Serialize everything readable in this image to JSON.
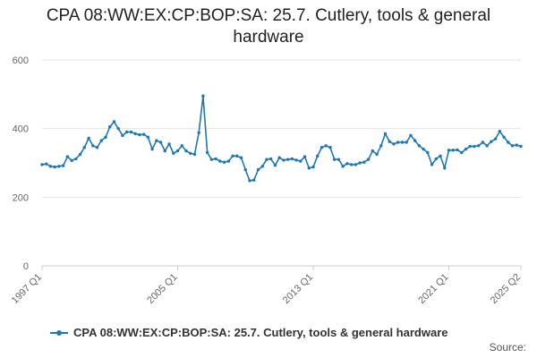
{
  "title_lines": [
    "CPA 08:WW:EX:CP:BOP:SA: 25.7. Cutlery, tools & general",
    "hardware"
  ],
  "source_label": "Source:",
  "colors": {
    "series": "#1f78b4",
    "grid": "#e6e6e6",
    "axis": "#cccccc",
    "tick_text": "#666666"
  },
  "chart_data": {
    "type": "line",
    "title": "CPA 08:WW:EX:CP:BOP:SA: 25.7. Cutlery, tools & general hardware",
    "xlabel": "",
    "ylabel": "",
    "ylim": [
      0,
      600
    ],
    "yticks": [
      0,
      200,
      400,
      600
    ],
    "xticks": [
      "1997 Q1",
      "2005 Q1",
      "2013 Q1",
      "2021 Q1",
      "2025 Q2"
    ],
    "grid": true,
    "legend_position": "bottom",
    "series": [
      {
        "name": "CPA 08:WW:EX:CP:BOP:SA: 25.7. Cutlery, tools & general hardware",
        "x": [
          "1997 Q1",
          "1997 Q2",
          "1997 Q3",
          "1997 Q4",
          "1998 Q1",
          "1998 Q2",
          "1998 Q3",
          "1998 Q4",
          "1999 Q1",
          "1999 Q2",
          "1999 Q3",
          "1999 Q4",
          "2000 Q1",
          "2000 Q2",
          "2000 Q3",
          "2000 Q4",
          "2001 Q1",
          "2001 Q2",
          "2001 Q3",
          "2001 Q4",
          "2002 Q1",
          "2002 Q2",
          "2002 Q3",
          "2002 Q4",
          "2003 Q1",
          "2003 Q2",
          "2003 Q3",
          "2003 Q4",
          "2004 Q1",
          "2004 Q2",
          "2004 Q3",
          "2004 Q4",
          "2005 Q1",
          "2005 Q2",
          "2005 Q3",
          "2005 Q4",
          "2006 Q1",
          "2006 Q2",
          "2006 Q3",
          "2006 Q4",
          "2007 Q1",
          "2007 Q2",
          "2007 Q3",
          "2007 Q4",
          "2008 Q1",
          "2008 Q2",
          "2008 Q3",
          "2008 Q4",
          "2009 Q1",
          "2009 Q2",
          "2009 Q3",
          "2009 Q4",
          "2010 Q1",
          "2010 Q2",
          "2010 Q3",
          "2010 Q4",
          "2011 Q1",
          "2011 Q2",
          "2011 Q3",
          "2011 Q4",
          "2012 Q1",
          "2012 Q2",
          "2012 Q3",
          "2012 Q4",
          "2013 Q1",
          "2013 Q2",
          "2013 Q3",
          "2013 Q4",
          "2014 Q1",
          "2014 Q2",
          "2014 Q3",
          "2014 Q4",
          "2015 Q1",
          "2015 Q2",
          "2015 Q3",
          "2015 Q4",
          "2016 Q1",
          "2016 Q2",
          "2016 Q3",
          "2016 Q4",
          "2017 Q1",
          "2017 Q2",
          "2017 Q3",
          "2017 Q4",
          "2018 Q1",
          "2018 Q2",
          "2018 Q3",
          "2018 Q4",
          "2019 Q1",
          "2019 Q2",
          "2019 Q3",
          "2019 Q4",
          "2020 Q1",
          "2020 Q2",
          "2020 Q3",
          "2020 Q4",
          "2021 Q1",
          "2021 Q2",
          "2021 Q3",
          "2021 Q4",
          "2022 Q1",
          "2022 Q2",
          "2022 Q3",
          "2022 Q4",
          "2023 Q1",
          "2023 Q2",
          "2023 Q3",
          "2023 Q4",
          "2024 Q1",
          "2024 Q2",
          "2024 Q3",
          "2024 Q4",
          "2025 Q1",
          "2025 Q2"
        ],
        "values": [
          295,
          297,
          290,
          288,
          290,
          292,
          318,
          307,
          312,
          325,
          345,
          372,
          350,
          345,
          365,
          375,
          405,
          420,
          400,
          380,
          390,
          390,
          385,
          382,
          383,
          375,
          340,
          365,
          360,
          335,
          355,
          328,
          335,
          350,
          335,
          328,
          325,
          388,
          495,
          330,
          310,
          312,
          305,
          302,
          305,
          320,
          320,
          315,
          280,
          248,
          250,
          280,
          290,
          310,
          312,
          293,
          315,
          308,
          310,
          312,
          308,
          305,
          318,
          285,
          288,
          320,
          345,
          350,
          345,
          310,
          310,
          290,
          298,
          295,
          295,
          300,
          302,
          310,
          335,
          325,
          350,
          385,
          362,
          355,
          360,
          360,
          360,
          380,
          365,
          350,
          340,
          330,
          295,
          312,
          320,
          285,
          337,
          337,
          338,
          330,
          340,
          348,
          348,
          350,
          360,
          350,
          362,
          370,
          392,
          375,
          360,
          350,
          352,
          348
        ]
      }
    ]
  }
}
